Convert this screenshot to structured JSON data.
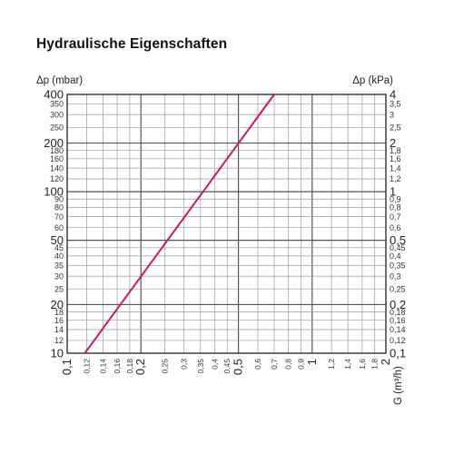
{
  "title": "Hydraulische Eigenschaften",
  "chart_data": {
    "type": "line",
    "title": "Hydraulische Eigenschaften",
    "xscale": "log",
    "yscale": "log",
    "xlabel": "G (m³/h)",
    "ylabel_left": "Δp (mbar)",
    "ylabel_right": "Δp (kPa)",
    "xlim": [
      0.1,
      2
    ],
    "ylim": [
      10,
      400
    ],
    "grid": true,
    "x_ticks": [
      {
        "v": 0.1,
        "label": "0,1",
        "major": true
      },
      {
        "v": 0.12,
        "label": "0,12",
        "major": false
      },
      {
        "v": 0.14,
        "label": "0,14",
        "major": false
      },
      {
        "v": 0.16,
        "label": "0,16",
        "major": false
      },
      {
        "v": 0.18,
        "label": "0,18",
        "major": false
      },
      {
        "v": 0.2,
        "label": "0,2",
        "major": true
      },
      {
        "v": 0.25,
        "label": "0,25",
        "major": false
      },
      {
        "v": 0.3,
        "label": "0,3",
        "major": false
      },
      {
        "v": 0.35,
        "label": "0,35",
        "major": false
      },
      {
        "v": 0.4,
        "label": "0,4",
        "major": false
      },
      {
        "v": 0.45,
        "label": "0,45",
        "major": false
      },
      {
        "v": 0.5,
        "label": "0,5",
        "major": true
      },
      {
        "v": 0.6,
        "label": "0,6",
        "major": false
      },
      {
        "v": 0.7,
        "label": "0,7",
        "major": false
      },
      {
        "v": 0.8,
        "label": "0,8",
        "major": false
      },
      {
        "v": 0.9,
        "label": "0,9",
        "major": false
      },
      {
        "v": 1,
        "label": "1",
        "major": true
      },
      {
        "v": 1.2,
        "label": "1,2",
        "major": false
      },
      {
        "v": 1.4,
        "label": "1,4",
        "major": false
      },
      {
        "v": 1.6,
        "label": "1,6",
        "major": false
      },
      {
        "v": 1.8,
        "label": "1,8",
        "major": false
      },
      {
        "v": 2,
        "label": "2",
        "major": true
      }
    ],
    "y_ticks_left": [
      {
        "v": 10,
        "label": "10",
        "major": true
      },
      {
        "v": 12,
        "label": "12",
        "major": false
      },
      {
        "v": 14,
        "label": "14",
        "major": false
      },
      {
        "v": 16,
        "label": "16",
        "major": false
      },
      {
        "v": 18,
        "label": "18",
        "major": false
      },
      {
        "v": 20,
        "label": "20",
        "major": true
      },
      {
        "v": 25,
        "label": "25",
        "major": false
      },
      {
        "v": 30,
        "label": "30",
        "major": false
      },
      {
        "v": 35,
        "label": "35",
        "major": false
      },
      {
        "v": 40,
        "label": "40",
        "major": false
      },
      {
        "v": 45,
        "label": "45",
        "major": false
      },
      {
        "v": 50,
        "label": "50",
        "major": true
      },
      {
        "v": 60,
        "label": "60",
        "major": false
      },
      {
        "v": 70,
        "label": "70",
        "major": false
      },
      {
        "v": 80,
        "label": "80",
        "major": false
      },
      {
        "v": 90,
        "label": "90",
        "major": false
      },
      {
        "v": 100,
        "label": "100",
        "major": true
      },
      {
        "v": 120,
        "label": "120",
        "major": false
      },
      {
        "v": 140,
        "label": "140",
        "major": false
      },
      {
        "v": 160,
        "label": "160",
        "major": false
      },
      {
        "v": 180,
        "label": "180",
        "major": false
      },
      {
        "v": 200,
        "label": "200",
        "major": true
      },
      {
        "v": 250,
        "label": "250",
        "major": false
      },
      {
        "v": 300,
        "label": "300",
        "major": false
      },
      {
        "v": 350,
        "label": "350",
        "major": false
      },
      {
        "v": 400,
        "label": "400",
        "major": true
      }
    ],
    "y_ticks_right": [
      {
        "v": 10,
        "label": "0,1",
        "major": true
      },
      {
        "v": 12,
        "label": "0,12",
        "major": false
      },
      {
        "v": 14,
        "label": "0,14",
        "major": false
      },
      {
        "v": 16,
        "label": "0,16",
        "major": false
      },
      {
        "v": 18,
        "label": "0,18",
        "major": false
      },
      {
        "v": 20,
        "label": "0,2",
        "major": true
      },
      {
        "v": 25,
        "label": "0,25",
        "major": false
      },
      {
        "v": 30,
        "label": "0,3",
        "major": false
      },
      {
        "v": 35,
        "label": "0,35",
        "major": false
      },
      {
        "v": 40,
        "label": "0,4",
        "major": false
      },
      {
        "v": 45,
        "label": "0,45",
        "major": false
      },
      {
        "v": 50,
        "label": "0,5",
        "major": true
      },
      {
        "v": 60,
        "label": "0,6",
        "major": false
      },
      {
        "v": 70,
        "label": "0,7",
        "major": false
      },
      {
        "v": 80,
        "label": "0,8",
        "major": false
      },
      {
        "v": 90,
        "label": "0,9",
        "major": false
      },
      {
        "v": 100,
        "label": "1",
        "major": true
      },
      {
        "v": 120,
        "label": "1,2",
        "major": false
      },
      {
        "v": 140,
        "label": "1,4",
        "major": false
      },
      {
        "v": 160,
        "label": "1,6",
        "major": false
      },
      {
        "v": 180,
        "label": "1,8",
        "major": false
      },
      {
        "v": 200,
        "label": "2",
        "major": true
      },
      {
        "v": 250,
        "label": "2,5",
        "major": false
      },
      {
        "v": 300,
        "label": "3",
        "major": false
      },
      {
        "v": 350,
        "label": "3,5",
        "major": false
      },
      {
        "v": 400,
        "label": "4",
        "major": true
      }
    ],
    "series": [
      {
        "color": "#c8186e",
        "x": [
          0.118,
          0.7
        ],
        "y": [
          10,
          400
        ]
      }
    ]
  }
}
